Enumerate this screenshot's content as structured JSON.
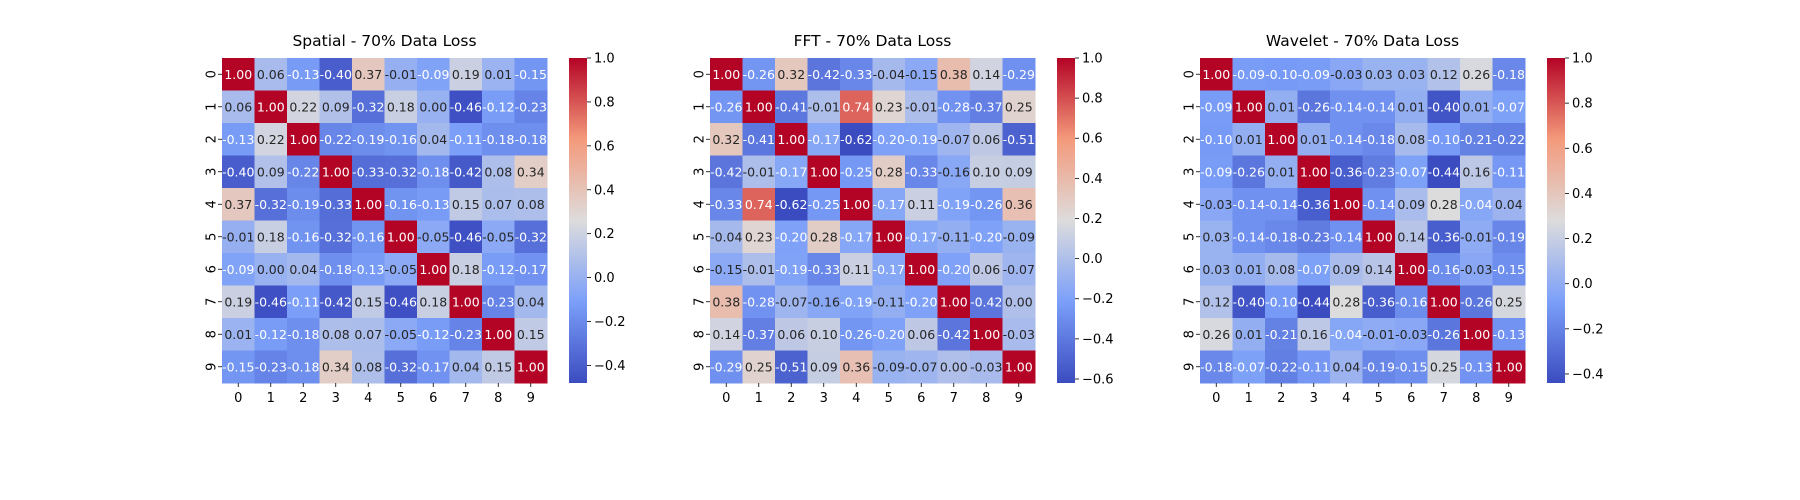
{
  "figure": {
    "colorscale": "coolwarm",
    "colors": {
      "low": "#3b4cc0",
      "mid": "#dddcdc",
      "high": "#b40426",
      "text_light": "#ffffff",
      "text_dark": "#262626"
    }
  },
  "chart_data": [
    {
      "type": "heatmap",
      "title": "Spatial - 70% Data Loss",
      "x_ticks": [
        "0",
        "1",
        "2",
        "3",
        "4",
        "5",
        "6",
        "7",
        "8",
        "9"
      ],
      "y_ticks": [
        "0",
        "1",
        "2",
        "3",
        "4",
        "5",
        "6",
        "7",
        "8",
        "9"
      ],
      "vmin": -0.48,
      "vmax": 1.0,
      "colorbar_ticks": [
        -0.4,
        -0.2,
        0.0,
        0.2,
        0.4,
        0.6,
        0.8,
        1.0
      ],
      "values": [
        [
          1.0,
          0.06,
          -0.13,
          -0.4,
          0.37,
          -0.01,
          -0.09,
          0.19,
          0.01,
          -0.15
        ],
        [
          0.06,
          1.0,
          0.22,
          0.09,
          -0.32,
          0.18,
          0.0,
          -0.46,
          -0.12,
          -0.23
        ],
        [
          -0.13,
          0.22,
          1.0,
          -0.22,
          -0.19,
          -0.16,
          0.04,
          -0.11,
          -0.18,
          -0.18
        ],
        [
          -0.4,
          0.09,
          -0.22,
          1.0,
          -0.33,
          -0.32,
          -0.18,
          -0.42,
          0.08,
          0.34
        ],
        [
          0.37,
          -0.32,
          -0.19,
          -0.33,
          1.0,
          -0.16,
          -0.13,
          0.15,
          0.07,
          0.08
        ],
        [
          -0.01,
          0.18,
          -0.16,
          -0.32,
          -0.16,
          1.0,
          -0.05,
          -0.46,
          -0.05,
          -0.32
        ],
        [
          -0.09,
          0.0,
          0.04,
          -0.18,
          -0.13,
          -0.05,
          1.0,
          0.18,
          -0.12,
          -0.17
        ],
        [
          0.19,
          -0.46,
          -0.11,
          -0.42,
          0.15,
          -0.46,
          0.18,
          1.0,
          -0.23,
          0.04
        ],
        [
          0.01,
          -0.12,
          -0.18,
          0.08,
          0.07,
          -0.05,
          -0.12,
          -0.23,
          1.0,
          0.15
        ],
        [
          -0.15,
          -0.23,
          -0.18,
          0.34,
          0.08,
          -0.32,
          -0.17,
          0.04,
          0.15,
          1.0
        ]
      ]
    },
    {
      "type": "heatmap",
      "title": "FFT - 70% Data Loss",
      "x_ticks": [
        "0",
        "1",
        "2",
        "3",
        "4",
        "5",
        "6",
        "7",
        "8",
        "9"
      ],
      "y_ticks": [
        "0",
        "1",
        "2",
        "3",
        "4",
        "5",
        "6",
        "7",
        "8",
        "9"
      ],
      "vmin": -0.62,
      "vmax": 1.0,
      "colorbar_ticks": [
        -0.6,
        -0.4,
        -0.2,
        0.0,
        0.2,
        0.4,
        0.6,
        0.8,
        1.0
      ],
      "values": [
        [
          1.0,
          -0.26,
          0.32,
          -0.42,
          -0.33,
          -0.04,
          -0.15,
          0.38,
          0.14,
          -0.29
        ],
        [
          -0.26,
          1.0,
          -0.41,
          -0.01,
          0.74,
          0.23,
          -0.01,
          -0.28,
          -0.37,
          0.25
        ],
        [
          0.32,
          -0.41,
          1.0,
          -0.17,
          -0.62,
          -0.2,
          -0.19,
          -0.07,
          0.06,
          -0.51
        ],
        [
          -0.42,
          -0.01,
          -0.17,
          1.0,
          -0.25,
          0.28,
          -0.33,
          -0.16,
          0.1,
          0.09
        ],
        [
          -0.33,
          0.74,
          -0.62,
          -0.25,
          1.0,
          -0.17,
          0.11,
          -0.19,
          -0.26,
          0.36
        ],
        [
          -0.04,
          0.23,
          -0.2,
          0.28,
          -0.17,
          1.0,
          -0.17,
          -0.11,
          -0.2,
          -0.09
        ],
        [
          -0.15,
          -0.01,
          -0.19,
          -0.33,
          0.11,
          -0.17,
          1.0,
          -0.2,
          0.06,
          -0.07
        ],
        [
          0.38,
          -0.28,
          -0.07,
          -0.16,
          -0.19,
          -0.11,
          -0.2,
          1.0,
          -0.42,
          -0.0
        ],
        [
          0.14,
          -0.37,
          0.06,
          0.1,
          -0.26,
          -0.2,
          0.06,
          -0.42,
          1.0,
          -0.03
        ],
        [
          -0.29,
          0.25,
          -0.51,
          0.09,
          0.36,
          -0.09,
          -0.07,
          -0.0,
          -0.03,
          1.0
        ]
      ]
    },
    {
      "type": "heatmap",
      "title": "Wavelet - 70% Data Loss",
      "x_ticks": [
        "0",
        "1",
        "2",
        "3",
        "4",
        "5",
        "6",
        "7",
        "8",
        "9"
      ],
      "y_ticks": [
        "0",
        "1",
        "2",
        "3",
        "4",
        "5",
        "6",
        "7",
        "8",
        "9"
      ],
      "vmin": -0.44,
      "vmax": 1.0,
      "colorbar_ticks": [
        -0.4,
        -0.2,
        0.0,
        0.2,
        0.4,
        0.6,
        0.8,
        1.0
      ],
      "values": [
        [
          1.0,
          -0.09,
          -0.1,
          -0.09,
          -0.03,
          0.03,
          0.03,
          0.12,
          0.26,
          -0.18
        ],
        [
          -0.09,
          1.0,
          0.01,
          -0.26,
          -0.14,
          -0.14,
          0.01,
          -0.4,
          0.01,
          -0.07
        ],
        [
          -0.1,
          0.01,
          1.0,
          0.01,
          -0.14,
          -0.18,
          0.08,
          -0.1,
          -0.21,
          -0.22
        ],
        [
          -0.09,
          -0.26,
          0.01,
          1.0,
          -0.36,
          -0.23,
          -0.07,
          -0.44,
          0.16,
          -0.11
        ],
        [
          -0.03,
          -0.14,
          -0.14,
          -0.36,
          1.0,
          -0.14,
          0.09,
          0.28,
          -0.04,
          0.04
        ],
        [
          0.03,
          -0.14,
          -0.18,
          -0.23,
          -0.14,
          1.0,
          0.14,
          -0.36,
          -0.01,
          -0.19
        ],
        [
          0.03,
          0.01,
          0.08,
          -0.07,
          0.09,
          0.14,
          1.0,
          -0.16,
          -0.03,
          -0.15
        ],
        [
          0.12,
          -0.4,
          -0.1,
          -0.44,
          0.28,
          -0.36,
          -0.16,
          1.0,
          -0.26,
          0.25
        ],
        [
          0.26,
          0.01,
          -0.21,
          0.16,
          -0.04,
          -0.01,
          -0.03,
          -0.26,
          1.0,
          -0.13
        ],
        [
          -0.18,
          -0.07,
          -0.22,
          -0.11,
          0.04,
          -0.19,
          -0.15,
          0.25,
          -0.13,
          1.0
        ]
      ]
    }
  ]
}
